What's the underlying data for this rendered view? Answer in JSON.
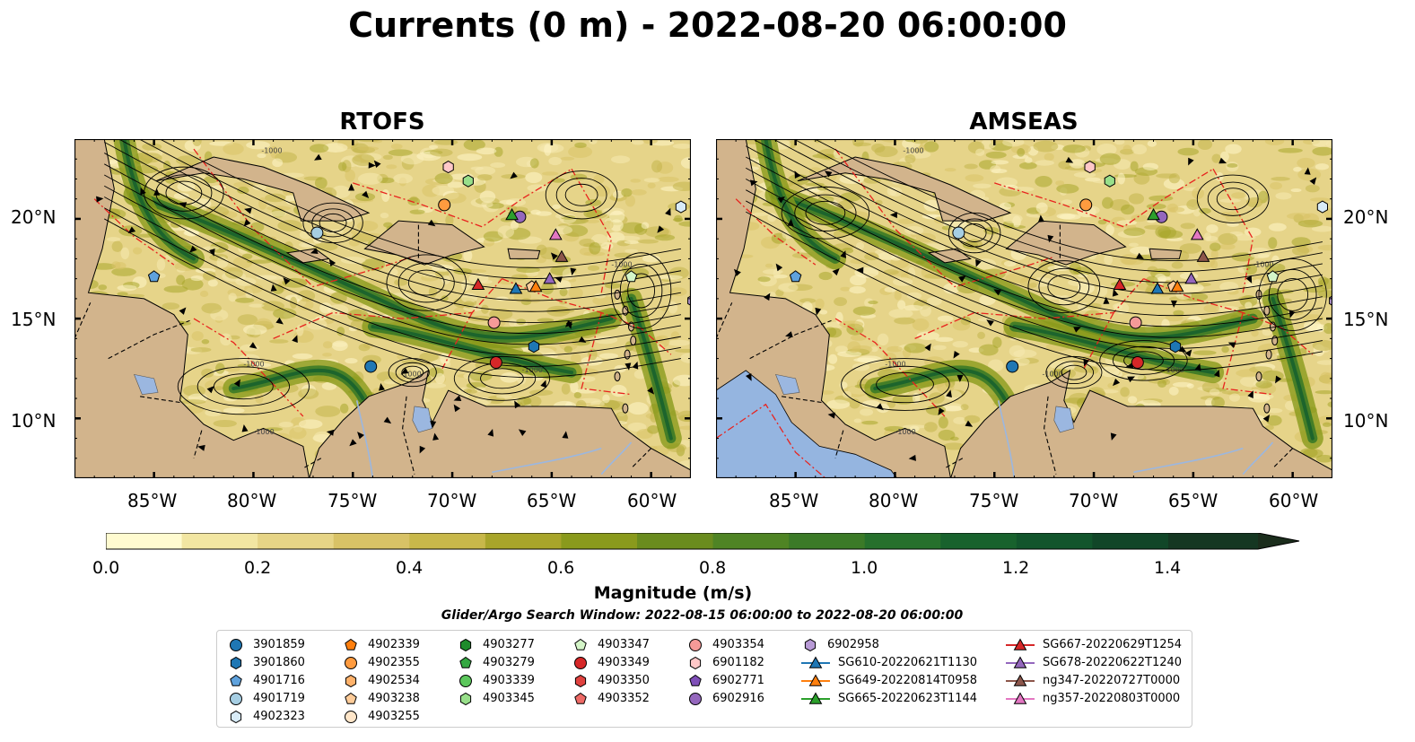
{
  "title": "Currents (0 m) - 2022-08-20 06:00:00",
  "panels": [
    {
      "title": "RTOFS"
    },
    {
      "title": "AMSEAS"
    }
  ],
  "lat_labels": [
    "20°N",
    "15°N",
    "10°N"
  ],
  "lon_labels": [
    "85°W",
    "80°W",
    "75°W",
    "70°W",
    "65°W",
    "60°W"
  ],
  "colorbar": {
    "label": "Magnitude (m/s)",
    "ticks": [
      "0.0",
      "0.2",
      "0.4",
      "0.6",
      "0.8",
      "1.0",
      "1.2",
      "1.4"
    ],
    "colors": [
      "#fffbd0",
      "#f2e6a2",
      "#e6d486",
      "#d8c266",
      "#c8b84a",
      "#a8a52a",
      "#8a9a1c",
      "#6a8c1e",
      "#4f8424",
      "#3b7a27",
      "#26702c",
      "#18622d",
      "#12552c",
      "#114628",
      "#153722",
      "#1b2d1c"
    ]
  },
  "search_window": "Glider/Argo Search Window: 2022-08-15 06:00:00 to 2022-08-20 06:00:00",
  "legend": [
    [
      {
        "label": "3901859",
        "marker": "circle",
        "color": "#1f77b4"
      },
      {
        "label": "3901860",
        "marker": "hexagon",
        "color": "#1f77b4"
      },
      {
        "label": "4901716",
        "marker": "pentagon",
        "color": "#5fa2dd"
      },
      {
        "label": "4901719",
        "marker": "circle",
        "color": "#a6cee3"
      },
      {
        "label": "4902323",
        "marker": "hexagon",
        "color": "#d8ebf7"
      }
    ],
    [
      {
        "label": "4902339",
        "marker": "pentagon",
        "color": "#ff7f0e"
      },
      {
        "label": "4902355",
        "marker": "circle",
        "color": "#ff9b3f"
      },
      {
        "label": "4902534",
        "marker": "hexagon",
        "color": "#ffb26b"
      },
      {
        "label": "4903238",
        "marker": "pentagon",
        "color": "#ffcc99"
      },
      {
        "label": "4903255",
        "marker": "circle",
        "color": "#ffe6c9"
      }
    ],
    [
      {
        "label": "4903277",
        "marker": "hexagon",
        "color": "#1f8b2c"
      },
      {
        "label": "4903279",
        "marker": "pentagon",
        "color": "#35a842"
      },
      {
        "label": "4903339",
        "marker": "circle",
        "color": "#5cc75c"
      },
      {
        "label": "4903345",
        "marker": "hexagon",
        "color": "#98df8a"
      }
    ],
    [
      {
        "label": "4903347",
        "marker": "pentagon",
        "color": "#d4f5c8"
      },
      {
        "label": "4903349",
        "marker": "circle",
        "color": "#d62728"
      },
      {
        "label": "4903350",
        "marker": "hexagon",
        "color": "#e0423f"
      },
      {
        "label": "4903352",
        "marker": "pentagon",
        "color": "#ee6a66"
      }
    ],
    [
      {
        "label": "4903354",
        "marker": "circle",
        "color": "#f59a98"
      },
      {
        "label": "6901182",
        "marker": "hexagon",
        "color": "#ffc8c8"
      },
      {
        "label": "6902771",
        "marker": "pentagon",
        "color": "#7f4fb8"
      },
      {
        "label": "6902916",
        "marker": "circle",
        "color": "#9467bd"
      }
    ],
    [
      {
        "label": "6902958",
        "marker": "hexagon",
        "color": "#b89ad6"
      },
      {
        "label": "SG610-20220621T1130",
        "marker": "triangle-line",
        "color": "#1f77b4"
      },
      {
        "label": "SG649-20220814T0958",
        "marker": "triangle-line",
        "color": "#ff7f0e"
      },
      {
        "label": "SG665-20220623T1144",
        "marker": "triangle-line",
        "color": "#2ca02c"
      }
    ],
    [
      {
        "label": "SG667-20220629T1254",
        "marker": "triangle-line",
        "color": "#d62728"
      },
      {
        "label": "SG678-20220622T1240",
        "marker": "triangle-line",
        "color": "#9467bd"
      },
      {
        "label": "ng347-20220727T0000",
        "marker": "triangle-line",
        "color": "#8c564b"
      },
      {
        "label": "ng357-20220803T0000",
        "marker": "triangle-line",
        "color": "#e377c2"
      }
    ]
  ],
  "map_extent": {
    "lon": [
      -89,
      -58
    ],
    "lat": [
      7,
      24
    ]
  },
  "platform_positions": [
    {
      "label": "3901859",
      "lon": -74.1,
      "lat": 12.6
    },
    {
      "label": "3901860",
      "lon": -65.9,
      "lat": 13.6
    },
    {
      "label": "4901716",
      "lon": -85,
      "lat": 17.1
    },
    {
      "label": "4901719",
      "lon": -76.8,
      "lat": 19.3
    },
    {
      "label": "4902323",
      "lon": -58.5,
      "lat": 20.6
    },
    {
      "label": "4902355",
      "lon": -70.4,
      "lat": 20.7
    },
    {
      "label": "4903238",
      "lon": -66.0,
      "lat": 16.6
    },
    {
      "label": "6901182",
      "lon": -70.2,
      "lat": 22.6
    },
    {
      "label": "4903345",
      "lon": -69.2,
      "lat": 21.9
    },
    {
      "label": "4903347",
      "lon": -61.0,
      "lat": 17.1
    },
    {
      "label": "4903349",
      "lon": -67.8,
      "lat": 12.8
    },
    {
      "label": "4903354",
      "lon": -67.9,
      "lat": 14.8
    },
    {
      "label": "6902916",
      "lon": -66.6,
      "lat": 20.1
    },
    {
      "label": "6902958",
      "lon": -57.9,
      "lat": 15.9
    },
    {
      "label": "SG667-20220629T1254",
      "lon": -68.7,
      "lat": 16.7
    },
    {
      "label": "SG610-20220621T1130",
      "lon": -66.8,
      "lat": 16.5
    },
    {
      "label": "SG649-20220814T0958",
      "lon": -65.8,
      "lat": 16.6
    },
    {
      "label": "SG678-20220622T1240",
      "lon": -65.1,
      "lat": 17.0
    },
    {
      "label": "SG665-20220623T1144",
      "lon": -67.0,
      "lat": 20.2
    },
    {
      "label": "ng357-20220803T0000",
      "lon": -64.8,
      "lat": 19.2
    },
    {
      "label": "ng347-20220727T0000",
      "lon": -64.5,
      "lat": 18.1
    }
  ],
  "bathymetry_label": "-1000"
}
